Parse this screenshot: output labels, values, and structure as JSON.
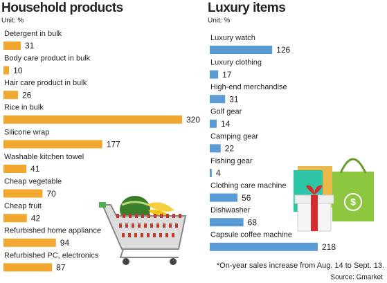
{
  "chart_data": [
    {
      "type": "bar",
      "orientation": "horizontal",
      "title": "Household products",
      "subtitle": "Unit: %",
      "color": "#f0a830",
      "categories": [
        "Detergent in bulk",
        "Body care product in bulk",
        "Hair care product in bulk",
        "Rice in bulk",
        "Silicone wrap",
        "Washable kitchen towel",
        "Cheap vegetable",
        "Cheap fruit",
        "Refurbished home appliance",
        "Refurbished PC, electronics"
      ],
      "values": [
        31,
        10,
        26,
        320,
        177,
        41,
        70,
        42,
        94,
        87
      ]
    },
    {
      "type": "bar",
      "orientation": "horizontal",
      "title": "Luxury items",
      "subtitle": "Unit: %",
      "color": "#5b9bd5",
      "categories": [
        "Luxury watch",
        "Luxury clothing",
        "High-end merchandise",
        "Golf gear",
        "Camping gear",
        "Fishing gear",
        "Clothing care machine",
        "Dishwasher",
        "Capsule coffee machine"
      ],
      "values": [
        126,
        17,
        31,
        14,
        22,
        4,
        56,
        68,
        218
      ],
      "footnote": "*On-year sales increase from Aug. 14 to Sept. 13.",
      "source": "Source: Gmarket"
    }
  ]
}
